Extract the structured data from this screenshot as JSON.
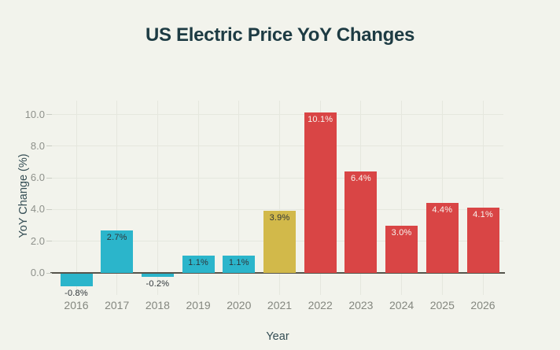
{
  "chart_data": {
    "type": "bar",
    "title": "US Electric Price YoY Changes",
    "xlabel": "Year",
    "ylabel": "YoY Change (%)",
    "categories": [
      "2016",
      "2017",
      "2018",
      "2019",
      "2020",
      "2021",
      "2022",
      "2023",
      "2024",
      "2025",
      "2026"
    ],
    "values": [
      -0.8,
      2.7,
      -0.2,
      1.1,
      1.1,
      3.9,
      10.1,
      6.4,
      3.0,
      4.4,
      4.1
    ],
    "bar_labels": [
      "-0.8%",
      "2.7%",
      "-0.2%",
      "1.1%",
      "1.1%",
      "3.9%",
      "10.1%",
      "6.4%",
      "3.0%",
      "4.4%",
      "4.1%"
    ],
    "bar_colors": [
      "#2bb5cb",
      "#2bb5cb",
      "#2bb5cb",
      "#2bb5cb",
      "#2bb5cb",
      "#d2b94a",
      "#d94545",
      "#d94545",
      "#d94545",
      "#d94545",
      "#d94545"
    ],
    "label_styles": [
      "dark",
      "dark",
      "dark",
      "dark",
      "dark",
      "dark",
      "light",
      "light",
      "light",
      "light",
      "light"
    ],
    "yticks": [
      0,
      2,
      4,
      6,
      8,
      10
    ],
    "ytick_labels": [
      "0.0",
      "2.0",
      "4.0",
      "6.0",
      "8.0",
      "10.0"
    ],
    "ylim": [
      -1.4,
      10.9
    ],
    "grid": true,
    "legend": "none"
  },
  "colors": {
    "background": "#f2f3ec",
    "title_text": "#1d3b43",
    "axis_title_text": "#334c53",
    "tick_text": "#8e918b",
    "grid_line": "#e5e7de",
    "zero_line": "#55544b",
    "bar_cyan": "#2bb5cb",
    "bar_gold": "#d2b94a",
    "bar_red": "#d94545",
    "label_dark": "#2f3539",
    "label_light": "#f7f4ee"
  }
}
